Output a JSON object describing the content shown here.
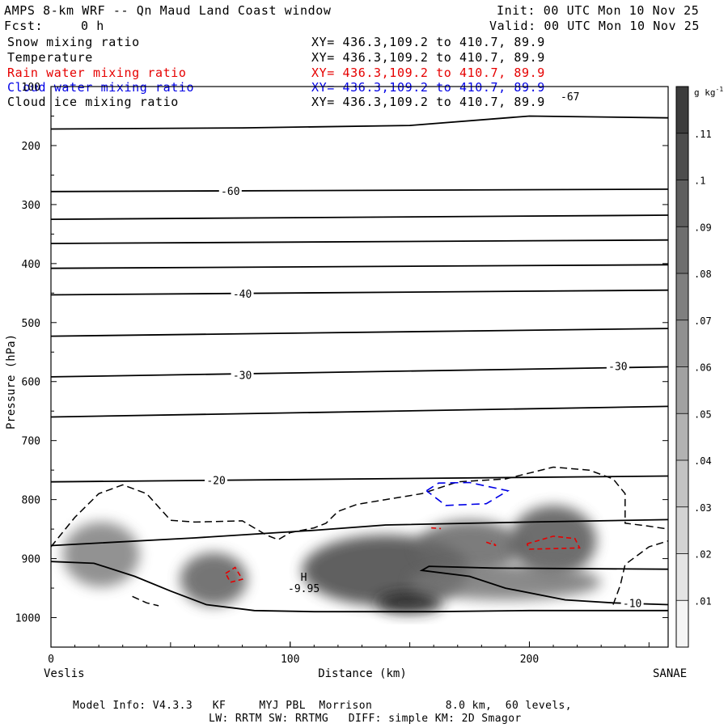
{
  "header": {
    "title": "AMPS 8-km WRF -- Qn Maud Land Coast window",
    "init": "Init: 00 UTC Mon 10 Nov 25",
    "fcst_label": "Fcst:",
    "fcst_value": "0 h",
    "valid": "Valid: 00 UTC Mon 10 Nov 25"
  },
  "fields": [
    {
      "name": "Snow mixing ratio",
      "xy": "XY= 436.3,109.2 to 410.7, 89.9",
      "color": "#000000"
    },
    {
      "name": "Temperature",
      "xy": "XY= 436.3,109.2 to 410.7, 89.9",
      "color": "#000000"
    },
    {
      "name": "Rain water mixing ratio",
      "xy": "XY= 436.3,109.2 to 410.7, 89.9",
      "color": "#e60000"
    },
    {
      "name": "Cloud water mixing ratio",
      "xy": "XY= 436.3,109.2 to 410.7, 89.9",
      "color": "#0000e6"
    },
    {
      "name": "Cloud ice mixing ratio",
      "xy": "XY= 436.3,109.2 to 410.7, 89.9",
      "color": "#000000"
    }
  ],
  "footer": {
    "line1": "Model Info: V4.3.3   KF     MYJ PBL  Morrison           8.0 km,  60 levels,",
    "line2": "LW: RRTM SW: RRTMG   DIFF: simple KM: 2D Smagor"
  },
  "chart_data": {
    "type": "heatmap",
    "title": "AMPS 8-km WRF -- Qn Maud Land Coast window",
    "xlabel": "Distance (km)",
    "ylabel": "Pressure (hPa)",
    "xlim": [
      0,
      258
    ],
    "ylim": [
      1050,
      100
    ],
    "x_ticks": [
      0,
      100,
      200
    ],
    "y_ticks": [
      100,
      200,
      300,
      400,
      500,
      600,
      700,
      800,
      900,
      1000
    ],
    "x_end_labels": {
      "left": "Veslis",
      "right": "SANAE"
    },
    "colorbar": {
      "unit": "g kg",
      "unit_sup": "-1",
      "levels": [
        ".01",
        ".02",
        ".03",
        ".04",
        ".05",
        ".06",
        ".07",
        ".08",
        ".09",
        ".1",
        ".11"
      ]
    },
    "annotations": {
      "high_marker": "H",
      "high_value": "-9.95",
      "high_at": [
        103,
        968
      ]
    },
    "temperature_contours": [
      {
        "points": [
          [
            0,
            172
          ],
          [
            80,
            170
          ],
          [
            150,
            166
          ],
          [
            200,
            150
          ],
          [
            258,
            153
          ]
        ],
        "label": "-67",
        "label_at": [
          217,
          118
        ]
      },
      {
        "points": [
          [
            0,
            278
          ],
          [
            258,
            274
          ]
        ],
        "label": "-60",
        "label_at": [
          75,
          278
        ]
      },
      {
        "points": [
          [
            0,
            325
          ],
          [
            258,
            318
          ]
        ]
      },
      {
        "points": [
          [
            0,
            366
          ],
          [
            258,
            360
          ]
        ]
      },
      {
        "points": [
          [
            0,
            408
          ],
          [
            258,
            402
          ]
        ]
      },
      {
        "points": [
          [
            0,
            453
          ],
          [
            258,
            445
          ]
        ],
        "label": "-40",
        "label_at": [
          80,
          452
        ]
      },
      {
        "points": [
          [
            0,
            523
          ],
          [
            258,
            510
          ]
        ]
      },
      {
        "points": [
          [
            0,
            592
          ],
          [
            258,
            575
          ]
        ],
        "label": "-30",
        "label_at": [
          80,
          590
        ],
        "label2": "-30",
        "label2_at": [
          237,
          575
        ]
      },
      {
        "points": [
          [
            0,
            660
          ],
          [
            258,
            642
          ]
        ]
      },
      {
        "points": [
          [
            0,
            770
          ],
          [
            258,
            760
          ]
        ],
        "label": "-20",
        "label_at": [
          69,
          768
        ]
      },
      {
        "points": [
          [
            0,
            878
          ],
          [
            60,
            865
          ],
          [
            110,
            852
          ],
          [
            140,
            843
          ],
          [
            200,
            838
          ],
          [
            258,
            834
          ]
        ]
      },
      {
        "points": [
          [
            0,
            905
          ],
          [
            18,
            908
          ],
          [
            35,
            930
          ],
          [
            50,
            955
          ],
          [
            65,
            978
          ],
          [
            85,
            988
          ],
          [
            110,
            990
          ],
          [
            160,
            990
          ],
          [
            200,
            988
          ],
          [
            258,
            988
          ]
        ]
      },
      {
        "points": [
          [
            258,
            978
          ],
          [
            235,
            975
          ],
          [
            215,
            970
          ],
          [
            190,
            950
          ],
          [
            175,
            930
          ],
          [
            155,
            920
          ],
          [
            158,
            913
          ],
          [
            185,
            916
          ],
          [
            258,
            918
          ]
        ],
        "label": "-10",
        "label_at": [
          243,
          977
        ]
      }
    ],
    "cloud_ice_contours": [
      {
        "points": [
          [
            0,
            880
          ],
          [
            10,
            830
          ],
          [
            20,
            790
          ],
          [
            30,
            775
          ],
          [
            40,
            790
          ],
          [
            50,
            835
          ],
          [
            60,
            838
          ],
          [
            80,
            836
          ],
          [
            90,
            860
          ],
          [
            95,
            868
          ],
          [
            100,
            856
          ],
          [
            110,
            848
          ],
          [
            115,
            840
          ],
          [
            120,
            820
          ],
          [
            128,
            808
          ],
          [
            140,
            800
          ],
          [
            155,
            790
          ],
          [
            170,
            770
          ],
          [
            190,
            765
          ],
          [
            200,
            755
          ],
          [
            210,
            745
          ],
          [
            225,
            750
          ],
          [
            235,
            765
          ],
          [
            240,
            790
          ],
          [
            240,
            840
          ],
          [
            250,
            845
          ],
          [
            258,
            850
          ]
        ]
      },
      {
        "points": [
          [
            235,
            978
          ],
          [
            238,
            945
          ],
          [
            240,
            910
          ],
          [
            250,
            880
          ],
          [
            258,
            870
          ]
        ]
      },
      {
        "points": [
          [
            34,
            964
          ],
          [
            40,
            975
          ],
          [
            45,
            980
          ]
        ]
      }
    ],
    "rain_water_contours": [
      {
        "points": [
          [
            73,
            925
          ],
          [
            77,
            915
          ],
          [
            80,
            935
          ],
          [
            75,
            940
          ],
          [
            73,
            925
          ]
        ]
      },
      {
        "points": [
          [
            199,
            875
          ],
          [
            210,
            862
          ],
          [
            219,
            866
          ],
          [
            221,
            882
          ],
          [
            200,
            884
          ],
          [
            199,
            875
          ]
        ]
      },
      {
        "points": [
          [
            182,
            872
          ],
          [
            186,
            878
          ],
          [
            184,
            870
          ]
        ]
      },
      {
        "points": [
          [
            159,
            848
          ],
          [
            163,
            849
          ]
        ]
      }
    ],
    "cloud_water_contours": [
      {
        "points": [
          [
            157,
            785
          ],
          [
            162,
            772
          ],
          [
            175,
            771
          ],
          [
            191,
            785
          ],
          [
            182,
            807
          ],
          [
            165,
            810
          ],
          [
            157,
            785
          ]
        ]
      }
    ],
    "snow_shading": [
      {
        "x": 21,
        "p": 893,
        "sx": 16,
        "sp": 55,
        "v": 0.065
      },
      {
        "x": 68,
        "p": 935,
        "sx": 14,
        "sp": 45,
        "v": 0.085
      },
      {
        "x": 140,
        "p": 920,
        "sx": 35,
        "sp": 60,
        "v": 0.1
      },
      {
        "x": 150,
        "p": 975,
        "sx": 14,
        "sp": 18,
        "v": 0.12
      },
      {
        "x": 175,
        "p": 880,
        "sx": 22,
        "sp": 45,
        "v": 0.08
      },
      {
        "x": 210,
        "p": 870,
        "sx": 18,
        "sp": 60,
        "v": 0.09
      },
      {
        "x": 190,
        "p": 940,
        "sx": 40,
        "sp": 30,
        "v": 0.07
      }
    ]
  }
}
